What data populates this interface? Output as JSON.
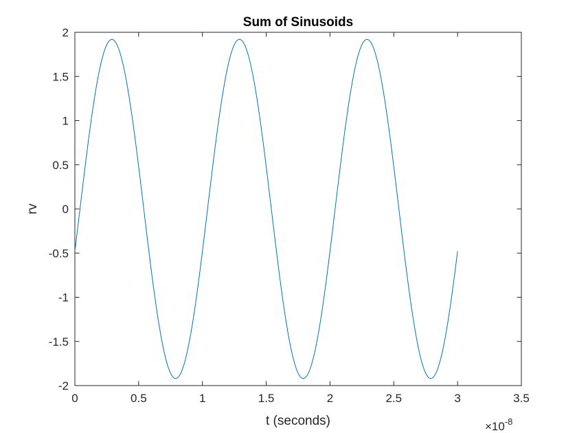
{
  "chart_data": {
    "type": "line",
    "title": "Sum of Sinusoids",
    "xlabel": "t (seconds)",
    "ylabel": "rv",
    "x_exponent_base": "×10",
    "x_exponent_power": "-8",
    "xlim": [
      0,
      3.5
    ],
    "ylim": [
      -2,
      2
    ],
    "xticks": [
      0,
      0.5,
      1,
      1.5,
      2,
      2.5,
      3,
      3.5
    ],
    "yticks": [
      -2,
      -1.5,
      -1,
      -0.5,
      0,
      0.5,
      1,
      1.5,
      2
    ],
    "x_tick_labels": [
      "0",
      "0.5",
      "1",
      "1.5",
      "2",
      "2.5",
      "3",
      "3.5"
    ],
    "y_tick_labels": [
      "-2",
      "-1.5",
      "-1",
      "-0.5",
      "0",
      "0.5",
      "1",
      "1.5",
      "2"
    ],
    "grid": false,
    "series": [
      {
        "color": "#0072bd",
        "x_start": 0,
        "x_end": 3.0,
        "period": 1.0,
        "amplitude": 1.92,
        "peaks_x": [
          0.29,
          1.29,
          2.29
        ],
        "troughs_x": [
          0.79,
          1.79,
          2.79
        ],
        "start_value": -0.47,
        "end_value": -0.47
      }
    ]
  }
}
